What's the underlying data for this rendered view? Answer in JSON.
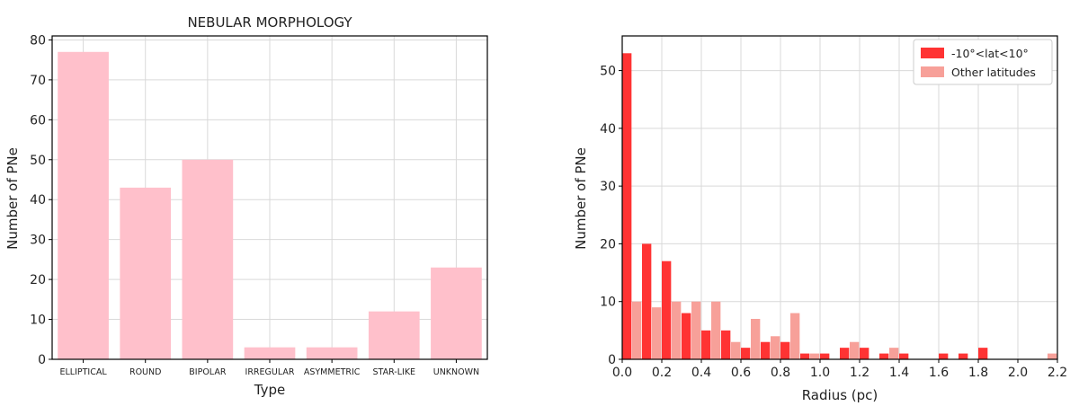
{
  "chart_data": [
    {
      "type": "bar",
      "title": "NEBULAR MORPHOLOGY",
      "xlabel": "Type",
      "ylabel": "Number of PNe",
      "categories": [
        "ELLIPTICAL",
        "ROUND",
        "BIPOLAR",
        "IRREGULAR",
        "ASYMMETRIC",
        "STAR-LIKE",
        "UNKNOWN"
      ],
      "values": [
        77,
        43,
        50,
        3,
        3,
        12,
        23
      ],
      "ylim": [
        0,
        81
      ],
      "yticks": [
        0,
        10,
        20,
        30,
        40,
        50,
        60,
        70,
        80
      ],
      "grid": true,
      "color": "#ffc0cb"
    },
    {
      "type": "bar",
      "title": "",
      "xlabel": "Radius (pc)",
      "ylabel": "Number of PNe",
      "xlim": [
        0,
        2.2
      ],
      "ylim": [
        0,
        56
      ],
      "xticks": [
        "0.0",
        "0.2",
        "0.4",
        "0.6",
        "0.8",
        "1.0",
        "1.2",
        "1.4",
        "1.6",
        "1.8",
        "2.0",
        "2.2"
      ],
      "yticks": [
        0,
        10,
        20,
        30,
        40,
        50
      ],
      "bin_width": 0.1,
      "bin_starts": [
        0.0,
        0.1,
        0.2,
        0.3,
        0.4,
        0.5,
        0.6,
        0.7,
        0.8,
        0.9,
        1.0,
        1.1,
        1.2,
        1.3,
        1.4,
        1.5,
        1.6,
        1.7,
        1.8,
        1.9,
        2.0,
        2.1
      ],
      "grid": true,
      "legend_position": "top-right",
      "series": [
        {
          "name": "-10°<lat<10°",
          "color": "#ff3333",
          "values": [
            53,
            20,
            17,
            8,
            5,
            5,
            2,
            3,
            3,
            1,
            1,
            2,
            2,
            1,
            1,
            0,
            1,
            1,
            2,
            0,
            0,
            0
          ]
        },
        {
          "name": "Other latitudes",
          "color": "#f7a099",
          "values": [
            10,
            9,
            10,
            10,
            10,
            3,
            7,
            4,
            8,
            1,
            0,
            3,
            0,
            2,
            0,
            0,
            0,
            0,
            0,
            0,
            0,
            1
          ]
        }
      ]
    }
  ]
}
